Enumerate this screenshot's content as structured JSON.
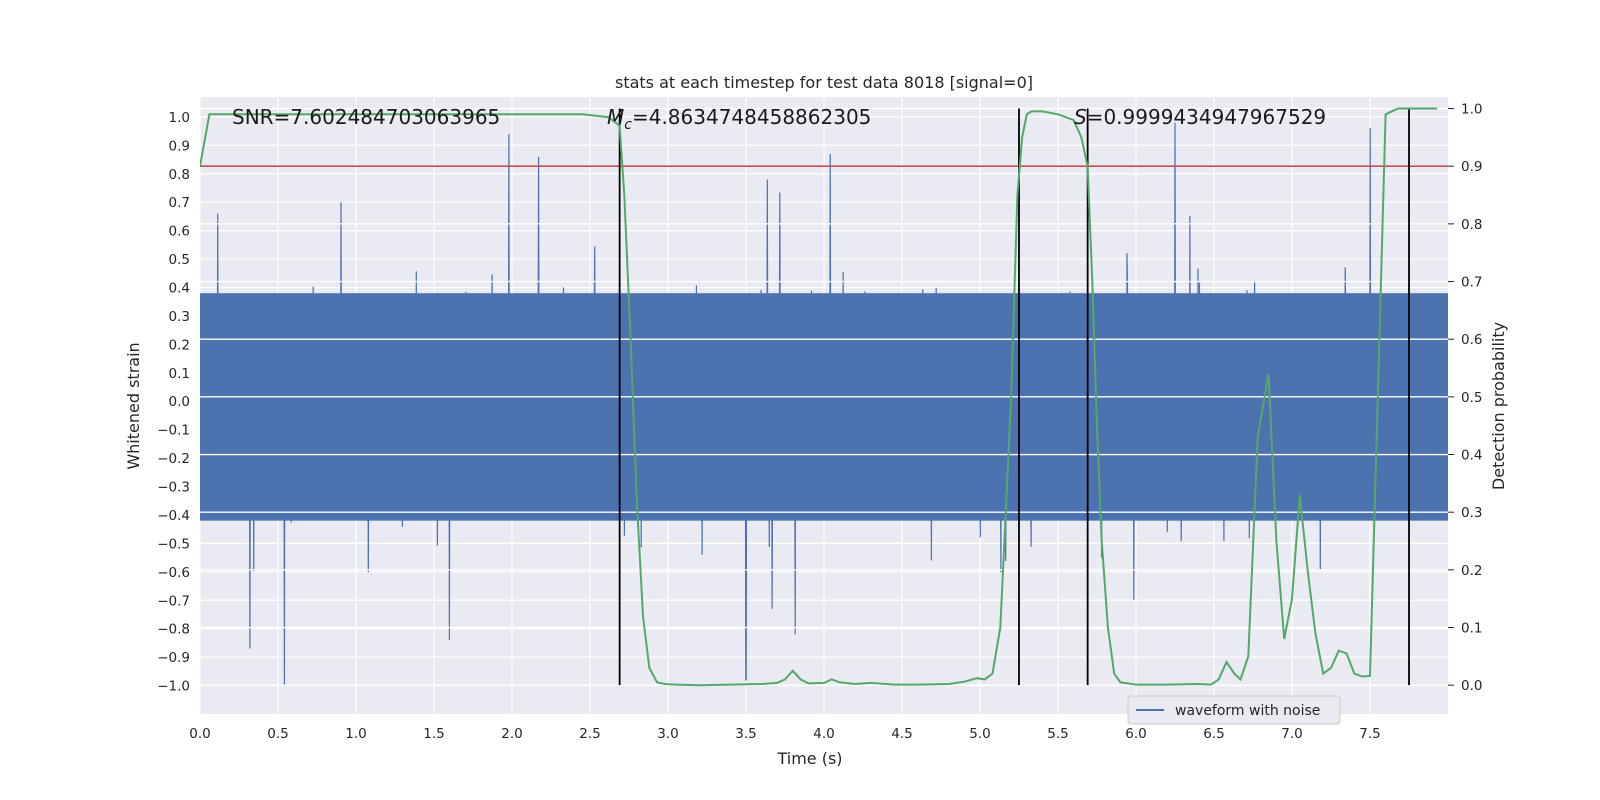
{
  "chart_data": {
    "type": "line",
    "title": "stats at each timestep for test data 8018 [signal=0]",
    "xlabel": "Time (s)",
    "ylabel_left": "Whitened strain",
    "ylabel_right": "Detection probability",
    "xlim": [
      0.0,
      8.0
    ],
    "ylim_left": [
      -1.1,
      1.07
    ],
    "ylim_right": [
      -0.05,
      1.02
    ],
    "x_ticks": [
      "0.0",
      "0.5",
      "1.0",
      "1.5",
      "2.0",
      "2.5",
      "3.0",
      "3.5",
      "4.0",
      "4.5",
      "5.0",
      "5.5",
      "6.0",
      "6.5",
      "7.0",
      "7.5"
    ],
    "y_ticks_left": [
      "1.0",
      "0.9",
      "0.8",
      "0.7",
      "0.6",
      "0.5",
      "0.4",
      "0.3",
      "0.2",
      "0.1",
      "0.0",
      "−0.1",
      "−0.2",
      "−0.3",
      "−0.4",
      "−0.5",
      "−0.6",
      "−0.7",
      "−0.8",
      "−0.9",
      "−1.0"
    ],
    "y_ticks_right": [
      "1.0",
      "0.9",
      "0.8",
      "0.7",
      "0.6",
      "0.5",
      "0.4",
      "0.3",
      "0.2",
      "0.1",
      "0.0"
    ],
    "annotations": {
      "snr": "SNR=7.602484703063965",
      "mc_symbol": "M",
      "mc_sub": "c",
      "mc_value": "=4.8634748458862305",
      "s_symbol": "S",
      "s_value": "=0.9999434947967529"
    },
    "threshold_probability": 0.9,
    "detection_boundaries_s": [
      2.69,
      5.25,
      5.69,
      7.75
    ],
    "series": [
      {
        "name": "waveform with noise",
        "axis": "left",
        "color": "#4c72b0",
        "envelope_abs_typical": 0.5,
        "peaks": [
          {
            "t": 1.98,
            "v": 0.94
          },
          {
            "t": 2.17,
            "v": 0.86
          },
          {
            "t": 4.04,
            "v": 0.87
          },
          {
            "t": 6.25,
            "v": 0.98
          },
          {
            "t": 7.5,
            "v": 0.96
          },
          {
            "t": 0.54,
            "v": -1.0
          },
          {
            "t": 3.5,
            "v": -0.98
          },
          {
            "t": 0.32,
            "v": -0.87
          },
          {
            "t": 1.6,
            "v": -0.84
          }
        ]
      },
      {
        "name": "detection probability",
        "axis": "right",
        "color": "#55a868",
        "x": [
          0.0,
          0.06,
          0.5,
          1.0,
          1.5,
          2.0,
          2.45,
          2.62,
          2.69,
          2.72,
          2.76,
          2.8,
          2.84,
          2.88,
          2.93,
          2.98,
          3.05,
          3.2,
          3.4,
          3.6,
          3.7,
          3.75,
          3.8,
          3.85,
          3.9,
          4.0,
          4.05,
          4.1,
          4.2,
          4.3,
          4.45,
          4.6,
          4.8,
          4.9,
          4.98,
          5.03,
          5.08,
          5.13,
          5.2,
          5.24,
          5.27,
          5.3,
          5.33,
          5.4,
          5.5,
          5.6,
          5.65,
          5.69,
          5.72,
          5.75,
          5.78,
          5.82,
          5.86,
          5.9,
          6.0,
          6.2,
          6.4,
          6.48,
          6.53,
          6.58,
          6.63,
          6.67,
          6.72,
          6.78,
          6.85,
          6.9,
          6.95,
          7.0,
          7.05,
          7.1,
          7.15,
          7.2,
          7.25,
          7.3,
          7.35,
          7.4,
          7.45,
          7.5,
          7.55,
          7.6,
          7.68,
          7.72,
          7.78,
          7.83,
          7.93
        ],
        "y": [
          0.9,
          0.99,
          0.99,
          0.99,
          0.99,
          0.99,
          0.99,
          0.985,
          0.97,
          0.85,
          0.6,
          0.32,
          0.12,
          0.03,
          0.005,
          0.002,
          0.001,
          0.0,
          0.001,
          0.002,
          0.004,
          0.01,
          0.025,
          0.01,
          0.003,
          0.004,
          0.01,
          0.005,
          0.002,
          0.004,
          0.001,
          0.001,
          0.002,
          0.006,
          0.012,
          0.01,
          0.02,
          0.1,
          0.5,
          0.85,
          0.95,
          0.99,
          0.995,
          0.995,
          0.99,
          0.98,
          0.95,
          0.9,
          0.7,
          0.45,
          0.25,
          0.1,
          0.02,
          0.005,
          0.001,
          0.001,
          0.002,
          0.001,
          0.01,
          0.04,
          0.02,
          0.01,
          0.05,
          0.43,
          0.54,
          0.25,
          0.08,
          0.15,
          0.33,
          0.2,
          0.09,
          0.02,
          0.03,
          0.06,
          0.055,
          0.02,
          0.015,
          0.016,
          0.5,
          0.99,
          1.0,
          1.0,
          1.0,
          1.0,
          1.0
        ]
      }
    ],
    "legend": {
      "label": "waveform with noise",
      "placement": "bottom-right"
    }
  }
}
